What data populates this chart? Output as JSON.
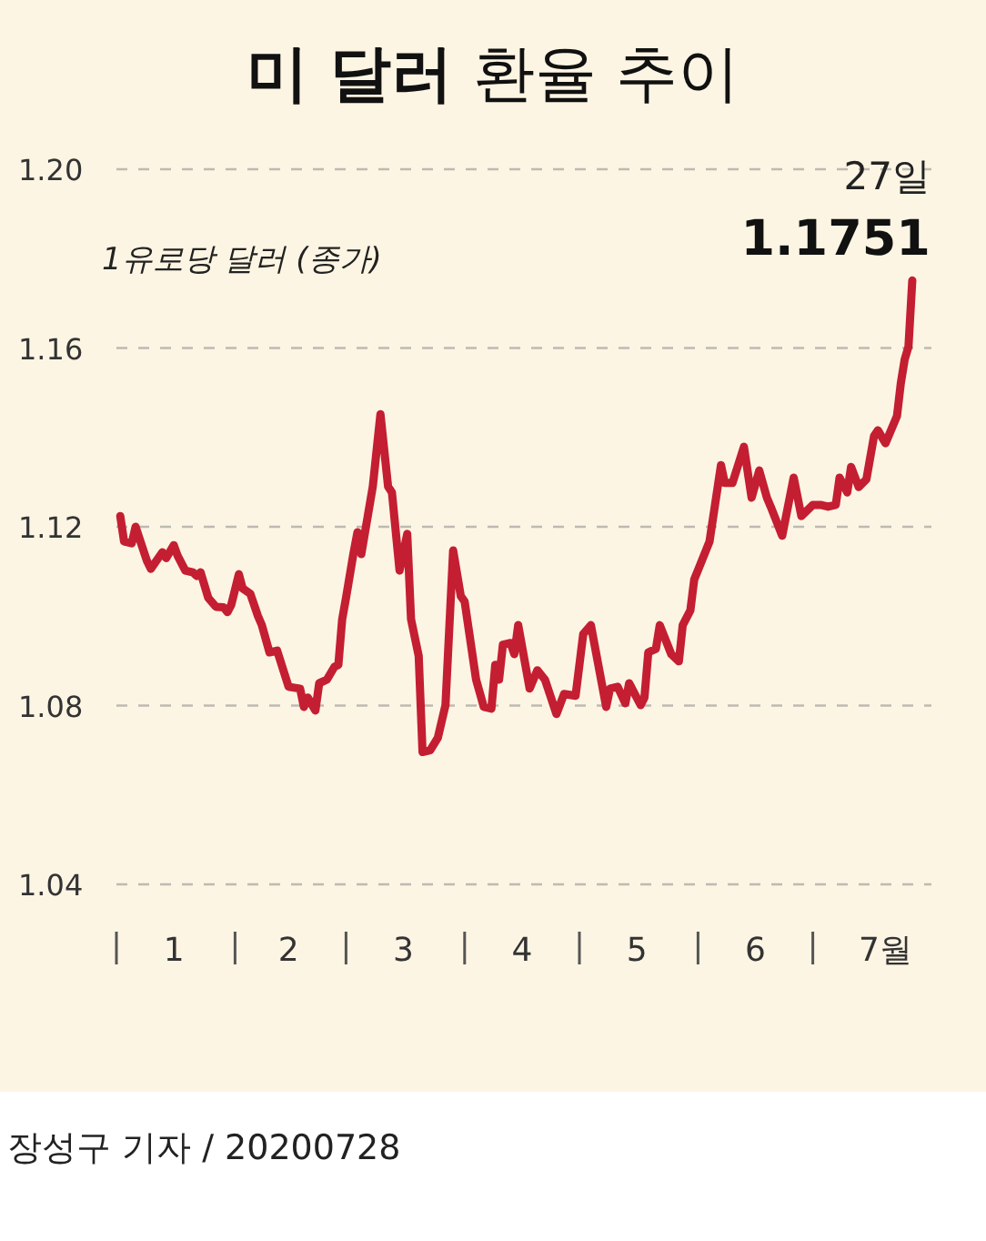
{
  "chart_data": {
    "type": "line",
    "title": "**미 달러** 환율 추이",
    "ylabel": "1유로당 달러 (종가)",
    "x": [
      "2020-01-02",
      "2020-01-03",
      "2020-01-05",
      "2020-01-06",
      "2020-01-09",
      "2020-01-10",
      "2020-01-13",
      "2020-01-14",
      "2020-01-16",
      "2020-01-17",
      "2020-01-19",
      "2020-01-21",
      "2020-01-22",
      "2020-01-23",
      "2020-01-25",
      "2020-01-27",
      "2020-01-29",
      "2020-01-30",
      "2020-01-31",
      "2020-02-02",
      "2020-02-03",
      "2020-02-05",
      "2020-02-07",
      "2020-02-08",
      "2020-02-10",
      "2020-02-12",
      "2020-02-15",
      "2020-02-18",
      "2020-02-19",
      "2020-02-20",
      "2020-02-22",
      "2020-02-23",
      "2020-02-25",
      "2020-02-27",
      "2020-02-28",
      "2020-02-29",
      "2020-03-01",
      "2020-03-03",
      "2020-03-04",
      "2020-03-05",
      "2020-03-08",
      "2020-03-10",
      "2020-03-12",
      "2020-03-13",
      "2020-03-15",
      "2020-03-17",
      "2020-03-18",
      "2020-03-20",
      "2020-03-21",
      "2020-03-23",
      "2020-03-25",
      "2020-03-27",
      "2020-03-29",
      "2020-03-31",
      "2020-04-01",
      "2020-04-04",
      "2020-04-06",
      "2020-04-08",
      "2020-04-09",
      "2020-04-10",
      "2020-04-11",
      "2020-04-13",
      "2020-04-14",
      "2020-04-15",
      "2020-04-18",
      "2020-04-20",
      "2020-04-22",
      "2020-04-25",
      "2020-04-27",
      "2020-04-30",
      "2020-05-02",
      "2020-05-04",
      "2020-05-08",
      "2020-05-09",
      "2020-05-11",
      "2020-05-13",
      "2020-05-14",
      "2020-05-17",
      "2020-05-18",
      "2020-05-19",
      "2020-05-21",
      "2020-05-22",
      "2020-05-25",
      "2020-05-27",
      "2020-05-28",
      "2020-05-30",
      "2020-05-31",
      "2020-06-04",
      "2020-06-07",
      "2020-06-08",
      "2020-06-10",
      "2020-06-13",
      "2020-06-15",
      "2020-06-17",
      "2020-06-19",
      "2020-06-20",
      "2020-06-23",
      "2020-06-26",
      "2020-06-28",
      "2020-07-01",
      "2020-07-03",
      "2020-07-05",
      "2020-07-07",
      "2020-07-08",
      "2020-07-10",
      "2020-07-11",
      "2020-07-13",
      "2020-07-15",
      "2020-07-17",
      "2020-07-18",
      "2020-07-20",
      "2020-07-23",
      "2020-07-24",
      "2020-07-25",
      "2020-07-26",
      "2020-07-27"
    ],
    "values": [
      1.1224,
      1.1167,
      1.1163,
      1.12,
      1.1123,
      1.1106,
      1.1143,
      1.113,
      1.1159,
      1.1135,
      1.1102,
      1.1098,
      1.109,
      1.1098,
      1.1041,
      1.1021,
      1.102,
      1.1009,
      1.1025,
      1.1094,
      1.1062,
      1.105,
      1.1,
      1.098,
      1.0919,
      1.0923,
      1.0842,
      1.0838,
      1.0797,
      1.0818,
      1.0789,
      1.085,
      1.0858,
      1.0887,
      1.0891,
      1.0993,
      1.1041,
      1.1143,
      1.1188,
      1.1139,
      1.129,
      1.1452,
      1.129,
      1.1277,
      1.1102,
      1.1184,
      1.0993,
      1.0911,
      1.0696,
      1.07,
      1.0728,
      1.0801,
      1.1147,
      1.1045,
      1.1033,
      1.0858,
      1.0797,
      1.0793,
      1.0891,
      1.0858,
      1.0936,
      1.094,
      1.0915,
      1.098,
      1.0838,
      1.0879,
      1.0858,
      1.0781,
      1.0826,
      1.0822,
      1.096,
      1.098,
      1.0797,
      1.0838,
      1.0842,
      1.0805,
      1.085,
      1.0801,
      1.0818,
      1.0919,
      1.0927,
      1.098,
      1.0915,
      1.0899,
      1.098,
      1.1013,
      1.1082,
      1.1167,
      1.1338,
      1.1298,
      1.1298,
      1.1379,
      1.1265,
      1.1326,
      1.1265,
      1.1245,
      1.118,
      1.131,
      1.1224,
      1.1249,
      1.1249,
      1.1245,
      1.1249,
      1.131,
      1.1277,
      1.1334,
      1.1289,
      1.1306,
      1.1403,
      1.1416,
      1.1387,
      1.1448,
      1.1521,
      1.1574,
      1.1603,
      1.1751
    ],
    "color": "#c41e32",
    "xlim": [
      "2020-01-01",
      "2020-08-01"
    ],
    "xticks": [
      {
        "value": "2020-01-16",
        "label": "1"
      },
      {
        "value": "2020-02-15",
        "label": "2"
      },
      {
        "value": "2020-03-16",
        "label": "3"
      },
      {
        "value": "2020-04-16",
        "label": "4"
      },
      {
        "value": "2020-05-16",
        "label": "5"
      },
      {
        "value": "2020-06-16",
        "label": "6"
      },
      {
        "value": "2020-07-20",
        "label": "7월"
      }
    ],
    "ylim": [
      1.04,
      1.2
    ],
    "yticks": [
      1.04,
      1.08,
      1.12,
      1.16,
      {
        "value": 1.2,
        "label": "1.20"
      }
    ],
    "grid": "y",
    "legend": false,
    "marker": "none",
    "line_style": "solid",
    "annotations": [
      {
        "text": "27일",
        "x": "2020-07-27",
        "y": 1.1751
      },
      {
        "text": "**1.1751**",
        "x": "2020-07-27",
        "y": 1.1751
      },
      "장성구 기자 / 20200728"
    ]
  }
}
